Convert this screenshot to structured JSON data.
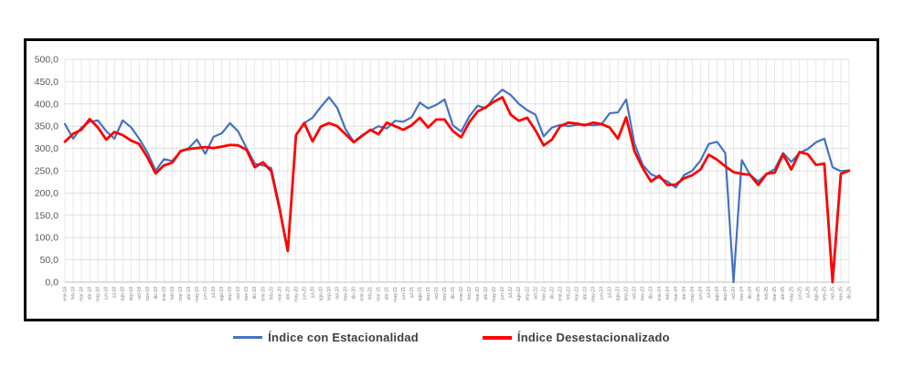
{
  "legend": {
    "series1_label": "Índice con Estacionalidad",
    "series2_label": "Índice Desestacionalizado"
  },
  "colors": {
    "series1": "#4472C4",
    "series2": "#FF0000",
    "gridline": "#D9D9D9",
    "axis_text": "#595959",
    "tick_text": "#7F7F7F",
    "frame_border": "#000000"
  },
  "chart_data": {
    "type": "line",
    "title": "",
    "xlabel": "",
    "ylabel": "",
    "ylim": [
      0,
      500
    ],
    "ystep": 50,
    "grid": true,
    "legend_position": "bottom",
    "y_tick_labels": [
      "0,0",
      "50,0",
      "100,0",
      "150,0",
      "200,0",
      "250,0",
      "300,0",
      "350,0",
      "400,0",
      "450,0",
      "500,0"
    ],
    "categories": [
      "ene-18",
      "feb-18",
      "mar-18",
      "abr-18",
      "may-18",
      "jun-18",
      "jul-18",
      "ago-18",
      "sep-18",
      "oct-18",
      "nov-18",
      "dic-18",
      "ene-19",
      "feb-19",
      "mar-19",
      "abr-19",
      "may-19",
      "jun-19",
      "jul-19",
      "ago-19",
      "sep-19",
      "oct-19",
      "nov-19",
      "dic-19",
      "ene-20",
      "feb-20",
      "mar-20",
      "abr-20",
      "may-20",
      "jun-20",
      "jul-20",
      "ago-20",
      "sep-20",
      "oct-20",
      "nov-20",
      "dic-20",
      "ene-21",
      "feb-21",
      "mar-21",
      "abr-21",
      "may-21",
      "jun-21",
      "jul-21",
      "ago-21",
      "sep-21",
      "oct-21",
      "nov-21",
      "dic-21",
      "ene-22",
      "feb-22",
      "mar-22",
      "abr-22",
      "may-22",
      "jun-22",
      "jul-22",
      "ago-22",
      "sep-22",
      "oct-22",
      "nov-22",
      "dic-22",
      "ene-23",
      "feb-23",
      "mar-23",
      "abr-23",
      "may-23",
      "jun-23",
      "jul-23",
      "ago-23",
      "sep-23",
      "oct-23",
      "nov-23",
      "dic-23",
      "ene-24",
      "feb-24",
      "mar-24",
      "abr-24",
      "may-24",
      "jun-24",
      "jul-24",
      "ago-24",
      "sep-24",
      "oct-24",
      "nov-24",
      "dic-24",
      "ene-25",
      "feb-25",
      "mar-25",
      "abr-25",
      "may-25",
      "jun-25",
      "jul-25",
      "ago-25",
      "sep-25",
      "oct-25",
      "nov-25",
      "dic-25"
    ],
    "series": [
      {
        "name": "Índice con Estacionalidad",
        "color": "#4472C4",
        "values": [
          355,
          322,
          347,
          360,
          363,
          339,
          322,
          363,
          348,
          322,
          291,
          250,
          276,
          272,
          293,
          301,
          320,
          288,
          326,
          334,
          357,
          338,
          301,
          266,
          262,
          256,
          170,
          70,
          330,
          357,
          369,
          393,
          415,
          391,
          343,
          315,
          330,
          340,
          350,
          345,
          362,
          360,
          370,
          403,
          390,
          398,
          410,
          352,
          338,
          372,
          396,
          390,
          415,
          432,
          420,
          400,
          386,
          376,
          327,
          347,
          353,
          350,
          353,
          354,
          352,
          354,
          379,
          381,
          410,
          311,
          263,
          242,
          234,
          226,
          212,
          240,
          250,
          273,
          310,
          315,
          290,
          0,
          274,
          241,
          226,
          243,
          254,
          290,
          270,
          290,
          299,
          314,
          322,
          258,
          249,
          251
        ]
      },
      {
        "name": "Índice Desestacionalizado",
        "color": "#FF0000",
        "values": [
          315,
          333,
          342,
          366,
          347,
          320,
          337,
          330,
          318,
          310,
          280,
          244,
          262,
          268,
          294,
          299,
          301,
          303,
          301,
          304,
          308,
          307,
          297,
          258,
          269,
          249,
          165,
          70,
          330,
          357,
          316,
          349,
          357,
          350,
          332,
          314,
          328,
          342,
          332,
          358,
          350,
          342,
          352,
          369,
          347,
          365,
          365,
          339,
          325,
          359,
          383,
          393,
          405,
          415,
          376,
          362,
          369,
          341,
          307,
          320,
          350,
          358,
          356,
          352,
          358,
          355,
          347,
          322,
          370,
          294,
          256,
          226,
          239,
          218,
          219,
          233,
          240,
          253,
          286,
          275,
          260,
          247,
          243,
          241,
          218,
          243,
          246,
          287,
          253,
          292,
          287,
          263,
          266,
          0,
          243,
          250
        ]
      }
    ]
  }
}
